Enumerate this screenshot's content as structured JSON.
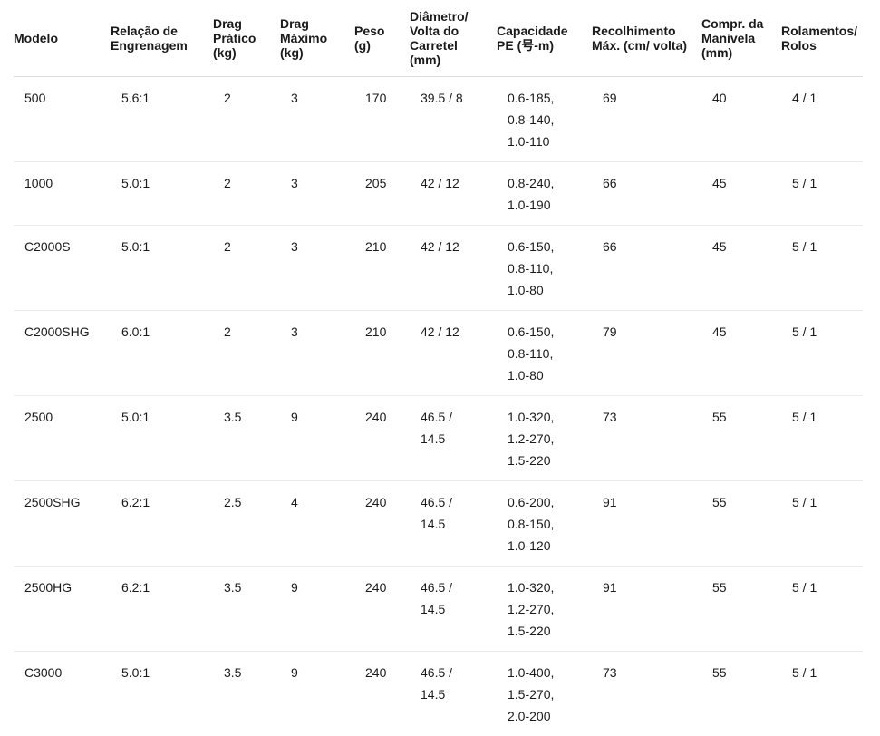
{
  "table": {
    "headers": [
      "Modelo",
      "Relação de Engrenagem",
      "Drag Prático (kg)",
      "Drag Máximo (kg)",
      "Peso (g)",
      "Diâmetro/ Volta do Carretel (mm)",
      "Capacidade PE (号-m)",
      "Recolhimento Máx. (cm/ volta)",
      "Compr. da Manivela (mm)",
      "Rolamentos/ Rolos"
    ],
    "rows": [
      [
        "500",
        "5.6:1",
        "2",
        "3",
        "170",
        "39.5 / 8",
        "0.6-185, 0.8-140, 1.0-110",
        "69",
        "40",
        "4 / 1"
      ],
      [
        "1000",
        "5.0:1",
        "2",
        "3",
        "205",
        "42 / 12",
        "0.8-240, 1.0-190",
        "66",
        "45",
        "5 / 1"
      ],
      [
        "C2000S",
        "5.0:1",
        "2",
        "3",
        "210",
        "42 / 12",
        "0.6-150, 0.8-110, 1.0-80",
        "66",
        "45",
        "5 / 1"
      ],
      [
        "C2000SHG",
        "6.0:1",
        "2",
        "3",
        "210",
        "42 / 12",
        "0.6-150, 0.8-110, 1.0-80",
        "79",
        "45",
        "5 / 1"
      ],
      [
        "2500",
        "5.0:1",
        "3.5",
        "9",
        "240",
        "46.5 / 14.5",
        "1.0-320, 1.2-270, 1.5-220",
        "73",
        "55",
        "5 / 1"
      ],
      [
        "2500SHG",
        "6.2:1",
        "2.5",
        "4",
        "240",
        "46.5 / 14.5",
        "0.6-200, 0.8-150, 1.0-120",
        "91",
        "55",
        "5 / 1"
      ],
      [
        "2500HG",
        "6.2:1",
        "3.5",
        "9",
        "240",
        "46.5 / 14.5",
        "1.0-320, 1.2-270, 1.5-220",
        "91",
        "55",
        "5 / 1"
      ],
      [
        "C3000",
        "5.0:1",
        "3.5",
        "9",
        "240",
        "46.5 / 14.5",
        "1.0-400, 1.5-270, 2.0-200",
        "73",
        "55",
        "5 / 1"
      ]
    ]
  }
}
